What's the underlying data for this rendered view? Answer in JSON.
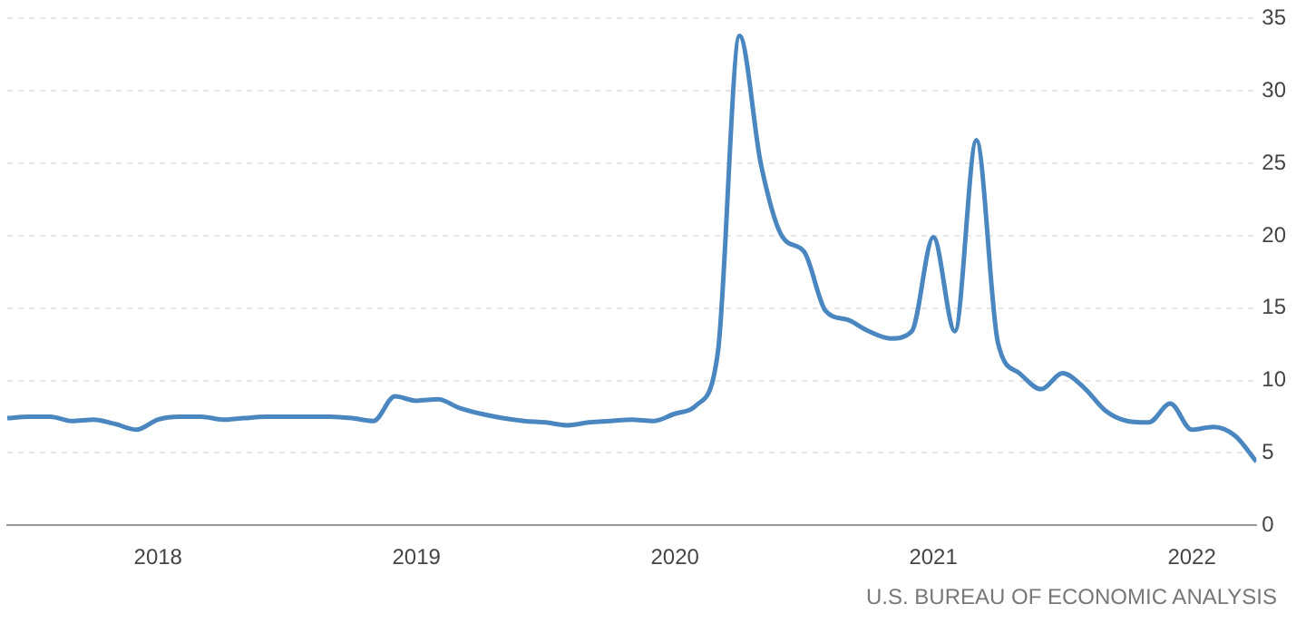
{
  "chart_data": {
    "type": "line",
    "x": [
      "2017-06",
      "2017-07",
      "2017-08",
      "2017-09",
      "2017-10",
      "2017-11",
      "2017-12",
      "2018-01",
      "2018-02",
      "2018-03",
      "2018-04",
      "2018-05",
      "2018-06",
      "2018-07",
      "2018-08",
      "2018-09",
      "2018-10",
      "2018-11",
      "2018-12",
      "2019-01",
      "2019-02",
      "2019-03",
      "2019-04",
      "2019-05",
      "2019-06",
      "2019-07",
      "2019-08",
      "2019-09",
      "2019-10",
      "2019-11",
      "2019-12",
      "2020-01",
      "2020-02",
      "2020-03",
      "2020-04",
      "2020-05",
      "2020-06",
      "2020-07",
      "2020-08",
      "2020-09",
      "2020-10",
      "2020-11",
      "2020-12",
      "2021-01",
      "2021-02",
      "2021-03",
      "2021-04",
      "2021-05",
      "2021-06",
      "2021-07",
      "2021-08",
      "2021-09",
      "2021-10",
      "2021-11",
      "2021-12",
      "2022-01",
      "2022-02",
      "2022-03",
      "2022-04"
    ],
    "series": [
      {
        "color": "#4a86c0",
        "values": [
          7.4,
          7.5,
          7.5,
          7.2,
          7.3,
          7.0,
          6.6,
          7.3,
          7.5,
          7.5,
          7.3,
          7.4,
          7.5,
          7.5,
          7.5,
          7.5,
          7.4,
          7.2,
          8.9,
          8.6,
          8.7,
          8.1,
          7.7,
          7.4,
          7.2,
          7.1,
          6.9,
          7.1,
          7.2,
          7.3,
          7.2,
          7.7,
          8.3,
          12.0,
          33.8,
          24.9,
          19.9,
          18.9,
          14.8,
          14.2,
          13.4,
          12.9,
          13.4,
          19.9,
          13.4,
          26.6,
          12.6,
          10.5,
          9.4,
          10.5,
          9.5,
          7.9,
          7.2,
          7.1,
          8.4,
          6.6,
          6.8,
          6.2,
          4.4
        ]
      }
    ],
    "xlim": [
      "2017-06",
      "2022-04"
    ],
    "xticks": [
      "2018",
      "2019",
      "2020",
      "2021",
      "2022"
    ],
    "ylim": [
      0,
      35
    ],
    "yticks": [
      0,
      5,
      10,
      15,
      20,
      25,
      30,
      35
    ],
    "grid": "y",
    "legend": false,
    "marker": "none",
    "line_style": "solid",
    "annotations": [
      "U.S. BUREAU OF ECONOMIC ANALYSIS"
    ]
  }
}
